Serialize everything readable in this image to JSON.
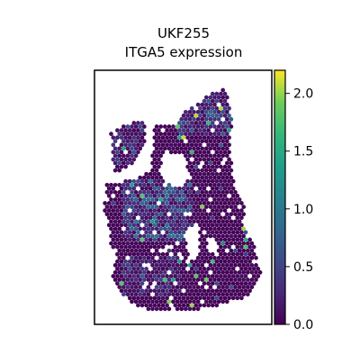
{
  "figure": {
    "title_line1": "UKF255",
    "title_line2": "ITGA5 expression"
  },
  "chart_data": {
    "type": "scatter",
    "subtype": "spatial-hexbin",
    "title": "UKF255\nITGA5 expression",
    "xlabel": "",
    "ylabel": "",
    "axes_ticks": false,
    "grid": false,
    "colorbar": {
      "cmap": "viridis",
      "range": [
        0.0,
        2.2
      ],
      "tick_values": [
        0.0,
        0.5,
        1.0,
        1.5,
        2.0
      ],
      "tick_labels": [
        "0.0",
        "0.5",
        "1.0",
        "1.5",
        "2.0"
      ],
      "placement": "right"
    },
    "colors": {
      "low": "#440154",
      "mid": "#21918c",
      "high": "#fde725"
    }
  }
}
